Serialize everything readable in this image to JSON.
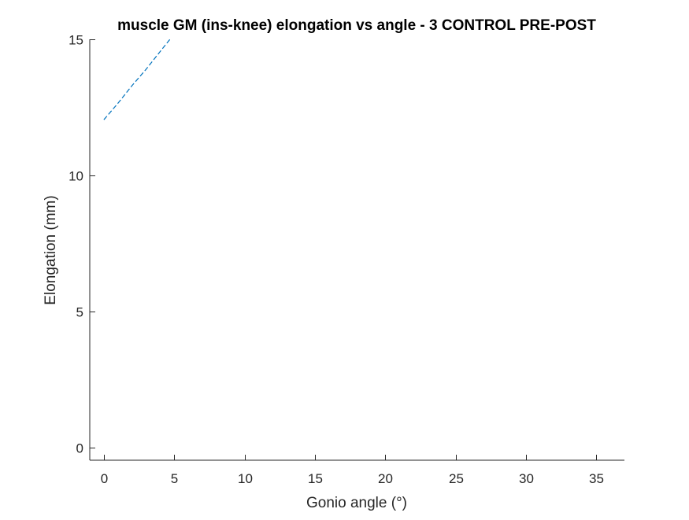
{
  "chart_data": {
    "type": "line",
    "title": "muscle GM (ins-knee) elongation vs angle - 3 CONTROL PRE-POST",
    "xlabel": "Gonio angle (°)",
    "ylabel": "Elongation (mm)",
    "xlim": [
      -1,
      37
    ],
    "ylim": [
      -0.45,
      15
    ],
    "xticks": [
      0,
      5,
      10,
      15,
      20,
      25,
      30,
      35
    ],
    "xtick_labels": [
      "0",
      "5",
      "10",
      "15",
      "20",
      "25",
      "30",
      "35"
    ],
    "yticks": [
      0,
      5,
      10,
      15
    ],
    "ytick_labels": [
      "0",
      "5",
      "10",
      "15"
    ],
    "grid": false,
    "box": false,
    "series": [
      {
        "line_style": "dashed",
        "color": "#0072BD",
        "x": [
          0,
          1,
          2,
          3,
          4,
          4.7
        ],
        "y": [
          12.05,
          12.65,
          13.3,
          13.9,
          14.55,
          15.0
        ]
      }
    ]
  }
}
